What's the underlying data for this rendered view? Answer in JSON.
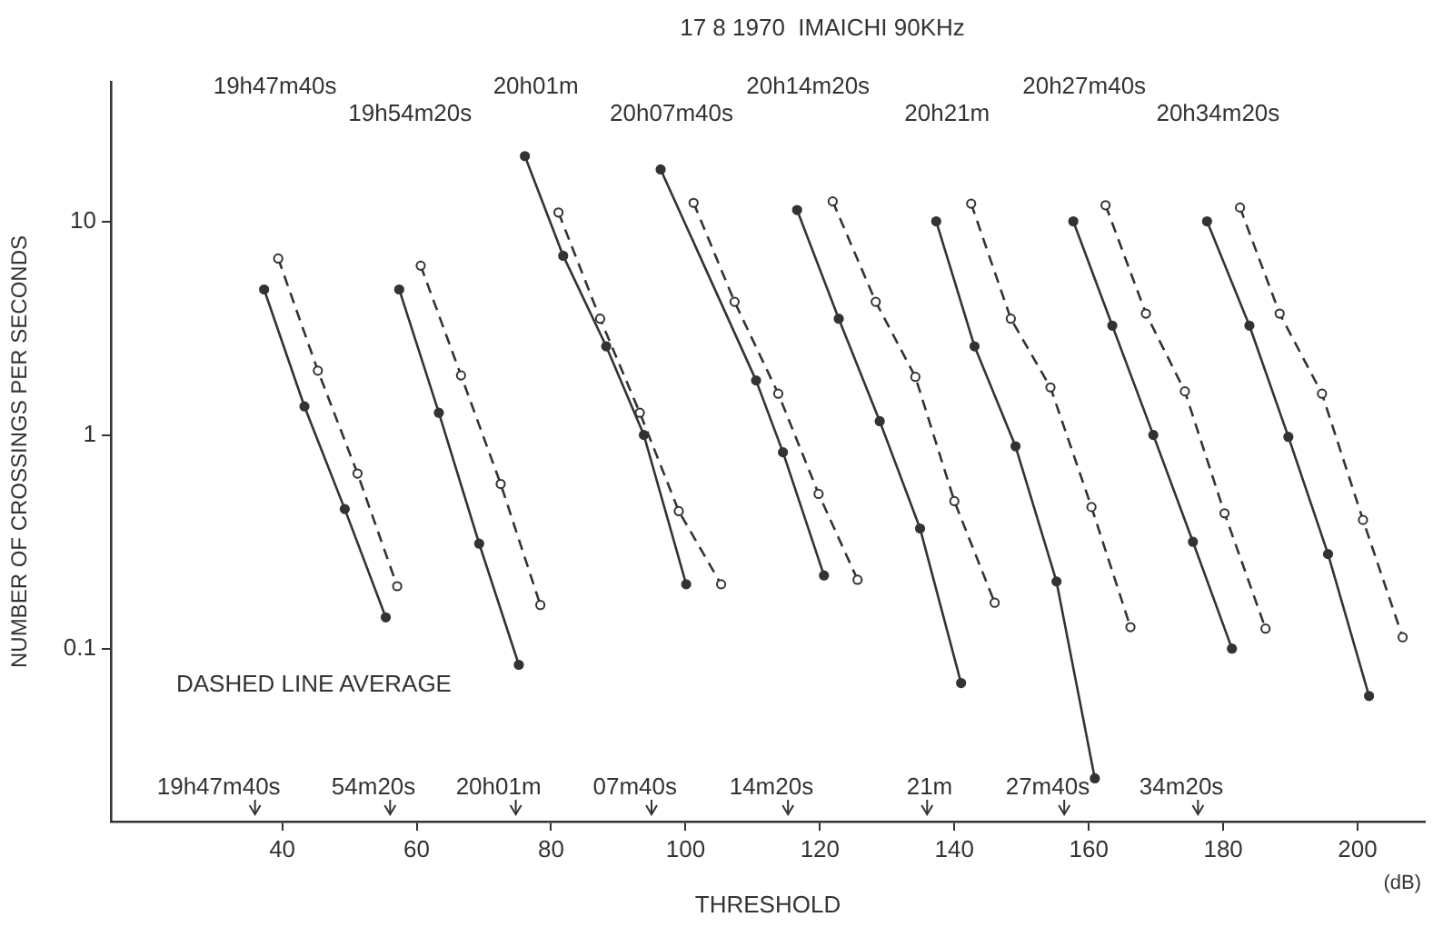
{
  "chart_data": {
    "type": "line",
    "title": "17 8 1970  IMAICHI 90KHz",
    "xlabel": "THRESHOLD",
    "ylabel": "NUMBER OF CROSSINGS PER SECONDS",
    "log": "y",
    "grid": false,
    "legend": false,
    "marker": "circle",
    "xlim": [
      14.5,
      210
    ],
    "xticks": [
      40,
      60,
      80,
      100,
      120,
      140,
      160,
      180,
      200
    ],
    "ylim": [
      0.0155,
      45
    ],
    "yticks": [
      0.1,
      1,
      10
    ],
    "series": [
      {
        "color": "#333333",
        "line_style": "solid",
        "x": [
          37.3,
          43.3,
          49.3,
          55.4
        ],
        "values": [
          4.8,
          1.36,
          0.45,
          0.14
        ]
      },
      {
        "color": "#333333",
        "line_style": "dashed",
        "x": [
          39.4,
          45.3,
          51.2,
          57.1
        ],
        "values": [
          6.7,
          2.0,
          0.66,
          0.196
        ]
      },
      {
        "color": "#333333",
        "line_style": "solid",
        "x": [
          57.4,
          63.3,
          69.3,
          75.2
        ],
        "values": [
          4.8,
          1.27,
          0.31,
          0.084
        ]
      },
      {
        "color": "#333333",
        "line_style": "dashed",
        "x": [
          60.6,
          66.6,
          72.5,
          78.4
        ],
        "values": [
          6.2,
          1.9,
          0.59,
          0.16
        ]
      },
      {
        "color": "#333333",
        "line_style": "solid",
        "x": [
          76.1,
          81.8,
          88.2,
          93.8,
          100.1
        ],
        "values": [
          20.2,
          6.9,
          2.6,
          1.0,
          0.2
        ]
      },
      {
        "color": "#333333",
        "line_style": "dashed",
        "x": [
          81.1,
          87.3,
          93.2,
          99.0,
          105.3
        ],
        "values": [
          11,
          3.5,
          1.27,
          0.44,
          0.2
        ]
      },
      {
        "color": "#333333",
        "line_style": "solid",
        "x": [
          96.3,
          110.5,
          114.5,
          120.6
        ],
        "values": [
          17.5,
          1.8,
          0.83,
          0.22
        ]
      },
      {
        "color": "#333333",
        "line_style": "dashed",
        "x": [
          101.2,
          107.3,
          113.8,
          119.8,
          125.6
        ],
        "values": [
          12.2,
          4.2,
          1.56,
          0.53,
          0.21
        ]
      },
      {
        "color": "#333333",
        "line_style": "solid",
        "x": [
          116.6,
          122.8,
          128.9,
          134.9,
          141.0
        ],
        "values": [
          11.3,
          3.5,
          1.16,
          0.365,
          0.069
        ]
      },
      {
        "color": "#333333",
        "line_style": "dashed",
        "x": [
          121.9,
          128.3,
          134.2,
          140.0,
          146.0
        ],
        "values": [
          12.4,
          4.2,
          1.87,
          0.49,
          0.164
        ]
      },
      {
        "color": "#333333",
        "line_style": "solid",
        "x": [
          137.3,
          143.0,
          149.1,
          155.2,
          160.9
        ],
        "values": [
          10.0,
          2.6,
          0.885,
          0.206,
          0.0247
        ]
      },
      {
        "color": "#333333",
        "line_style": "dashed",
        "x": [
          142.5,
          148.4,
          154.3,
          160.4,
          166.2
        ],
        "values": [
          12.1,
          3.5,
          1.67,
          0.46,
          0.126
        ]
      },
      {
        "color": "#333333",
        "line_style": "solid",
        "x": [
          157.7,
          163.5,
          169.6,
          175.5,
          181.3
        ],
        "values": [
          10,
          3.25,
          1.0,
          0.316,
          0.1
        ]
      },
      {
        "color": "#333333",
        "line_style": "dashed",
        "x": [
          162.5,
          168.5,
          174.3,
          180.2,
          186.3
        ],
        "values": [
          11.9,
          3.7,
          1.6,
          0.43,
          0.124
        ]
      },
      {
        "color": "#333333",
        "line_style": "solid",
        "x": [
          177.6,
          183.9,
          189.7,
          195.6,
          201.7
        ],
        "values": [
          10,
          3.25,
          0.98,
          0.277,
          0.06
        ]
      },
      {
        "color": "#333333",
        "line_style": "dashed",
        "x": [
          182.5,
          188.4,
          194.7,
          200.8,
          206.7
        ],
        "values": [
          11.6,
          3.7,
          1.56,
          0.4,
          0.113
        ]
      }
    ],
    "annotations": [
      "19h47m40s",
      "19h54m20s",
      "20h01m",
      "20h07m40s",
      "20h14m20s",
      "20h21m",
      "20h27m40s",
      "20h34m20s",
      "19h47m40s",
      "54m20s",
      "20h01m",
      "07m40s",
      "14m20s",
      "21m",
      "27m40s",
      "34m20s",
      "DASHED LINE AVERAGE",
      "(dB)"
    ]
  }
}
